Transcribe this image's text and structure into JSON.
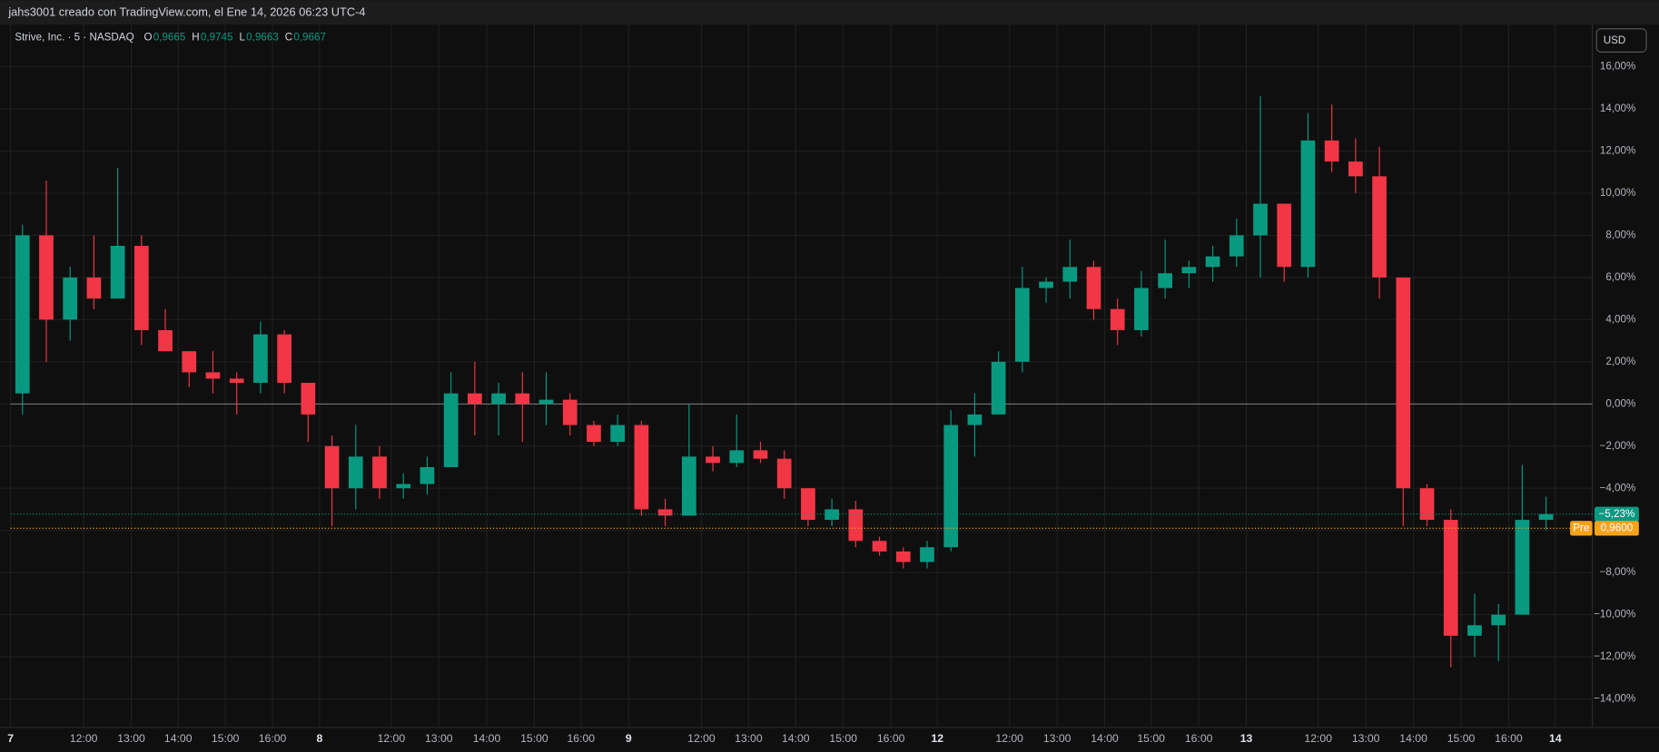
{
  "chart_data": {
    "type": "candlestick",
    "title": "jahs3001 creado con TradingView.com, el Ene 14, 2026 06:23 UTC-4",
    "symbol": "Strive, Inc. · 5 · NASDAQ",
    "ohlc": [
      {
        "key": "O",
        "value": "0,9665"
      },
      {
        "key": "H",
        "value": "0,9745"
      },
      {
        "key": "L",
        "value": "0,9663"
      },
      {
        "key": "C",
        "value": "0,9667"
      }
    ],
    "currency": "USD",
    "up_color": "#089981",
    "down_color": "#f23645",
    "open": [
      0.5,
      8,
      4,
      6,
      5,
      7.5,
      3.5,
      2.5,
      1.5,
      1.2,
      1,
      3.3,
      1,
      -2,
      -4,
      -2.5,
      -4,
      -3.8,
      -3,
      0.5,
      0,
      0.5,
      0,
      0.2,
      -1,
      -1.8,
      -1,
      -5,
      -5.3,
      -2.5,
      -2.8,
      -2.2,
      -2.6,
      -4,
      -5.5,
      -5,
      -6.5,
      -7,
      -7.5,
      -6.8,
      -1,
      -0.5,
      2,
      5.5,
      5.8,
      6.5,
      4.5,
      3.5,
      5.5,
      6.2,
      6.5,
      7,
      8,
      9.5,
      6.5,
      12.5,
      11.5,
      10.8,
      6,
      -4,
      -5.5,
      -11,
      -10.5,
      -10,
      -5.5
    ],
    "high": [
      8.5,
      10.6,
      6.5,
      8,
      11.2,
      8,
      4.5,
      2.5,
      2.5,
      1.5,
      3.9,
      3.5,
      1,
      -1.5,
      -1,
      -2,
      -3.3,
      -2.5,
      1.5,
      2,
      1,
      1.5,
      1.5,
      0.5,
      -0.8,
      -0.5,
      -0.8,
      -4.5,
      0,
      -2,
      -0.5,
      -1.8,
      -2.2,
      -4,
      -4.5,
      -4.6,
      -6.3,
      -6.8,
      -6.5,
      -0.3,
      0.5,
      2.5,
      6.5,
      6,
      7.8,
      6.8,
      5,
      6.3,
      7.8,
      6.8,
      7.5,
      8.8,
      14.6,
      9.5,
      13.8,
      14.2,
      12.6,
      12.2,
      6,
      -3.8,
      -5,
      -9,
      -9.5,
      -2.9,
      -4.4
    ],
    "low": [
      -0.5,
      2,
      3,
      4.5,
      5,
      2.8,
      2.5,
      0.8,
      0.5,
      -0.5,
      0.5,
      0.5,
      -1.8,
      -5.8,
      -5,
      -4.5,
      -4.5,
      -4.3,
      -3,
      -1.5,
      -1.5,
      -1.8,
      -1,
      -1.5,
      -2,
      -2,
      -5.3,
      -5.8,
      -5.3,
      -3.2,
      -3,
      -2.8,
      -4.5,
      -5.8,
      -5.8,
      -6.8,
      -7.2,
      -7.8,
      -7.8,
      -7,
      -2.5,
      -0.5,
      1.5,
      4.8,
      5,
      4,
      2.8,
      3.2,
      5,
      5.5,
      5.8,
      6.5,
      6,
      5.8,
      6,
      11,
      10,
      5,
      -5.8,
      -5.8,
      -12.5,
      -12,
      -12.2,
      -10,
      -6
    ],
    "close": [
      8,
      4,
      6,
      5,
      7.5,
      3.5,
      2.5,
      1.5,
      1.2,
      1,
      3.3,
      1,
      -0.5,
      -4,
      -2.5,
      -4,
      -3.8,
      -3,
      0.5,
      0,
      0.5,
      0,
      0.2,
      -1,
      -1.8,
      -1,
      -5,
      -5.3,
      -2.5,
      -2.8,
      -2.2,
      -2.6,
      -4,
      -5.5,
      -5,
      -6.5,
      -7,
      -7.5,
      -6.8,
      -1,
      -0.5,
      2,
      5.5,
      5.8,
      6.5,
      4.5,
      3.5,
      5.5,
      6.2,
      6.5,
      7,
      8,
      9.5,
      6.5,
      12.5,
      11.5,
      10.8,
      6,
      -4,
      -5.5,
      -11,
      -10.5,
      -10,
      -5.5,
      -5.23
    ],
    "xlim": [
      0,
      66
    ],
    "xticks": [
      {
        "value": 0,
        "label": "7"
      },
      {
        "value": 3.07,
        "label": "12:00"
      },
      {
        "value": 5.07,
        "label": "13:00"
      },
      {
        "value": 7.04,
        "label": "14:00"
      },
      {
        "value": 9.02,
        "label": "15:00"
      },
      {
        "value": 11,
        "label": "16:00"
      },
      {
        "value": 12.98,
        "label": "8"
      },
      {
        "value": 15.99,
        "label": "12:00"
      },
      {
        "value": 17.99,
        "label": "13:00"
      },
      {
        "value": 20,
        "label": "14:00"
      },
      {
        "value": 22,
        "label": "15:00"
      },
      {
        "value": 23.96,
        "label": "16:00"
      },
      {
        "value": 25.96,
        "label": "9"
      },
      {
        "value": 29.02,
        "label": "12:00"
      },
      {
        "value": 31,
        "label": "13:00"
      },
      {
        "value": 32.98,
        "label": "14:00"
      },
      {
        "value": 34.98,
        "label": "15:00"
      },
      {
        "value": 36.98,
        "label": "16:00"
      },
      {
        "value": 38.93,
        "label": "12"
      },
      {
        "value": 41.96,
        "label": "12:00"
      },
      {
        "value": 43.96,
        "label": "13:00"
      },
      {
        "value": 45.96,
        "label": "14:00"
      },
      {
        "value": 47.91,
        "label": "15:00"
      },
      {
        "value": 49.91,
        "label": "16:00"
      },
      {
        "value": 51.91,
        "label": "13"
      },
      {
        "value": 54.93,
        "label": "12:00"
      },
      {
        "value": 56.93,
        "label": "13:00"
      },
      {
        "value": 58.93,
        "label": "14:00"
      },
      {
        "value": 60.93,
        "label": "15:00"
      },
      {
        "value": 62.93,
        "label": "16:00"
      },
      {
        "value": 64.89,
        "label": "14"
      }
    ],
    "ylim": [
      -15.35,
      17.95
    ],
    "yticks": [
      {
        "value": 16,
        "label": "16,00%"
      },
      {
        "value": 14,
        "label": "14,00%"
      },
      {
        "value": 12,
        "label": "12,00%"
      },
      {
        "value": 10,
        "label": "10,00%"
      },
      {
        "value": 8,
        "label": "8,00%"
      },
      {
        "value": 6,
        "label": "6,00%"
      },
      {
        "value": 4,
        "label": "4,00%"
      },
      {
        "value": 2,
        "label": "2,00%"
      },
      {
        "value": 0,
        "label": "0,00%"
      },
      {
        "value": -2,
        "label": "−2,00%"
      },
      {
        "value": -4,
        "label": "−4,00%"
      },
      {
        "value": -6,
        "label": "−6,00%"
      },
      {
        "value": -8,
        "label": "−8,00%"
      },
      {
        "value": -10,
        "label": "−10,00%"
      },
      {
        "value": -12,
        "label": "−12,00%"
      },
      {
        "value": -14,
        "label": "−14,00%"
      }
    ],
    "grid": true,
    "baseline": 0,
    "last_marker": {
      "value": -5.23,
      "label": "−5,23%",
      "color": "#089981"
    },
    "pre_marker": {
      "value": -5.9,
      "tag": "Pre",
      "label": "0,9600",
      "color": "#f7a21b"
    }
  }
}
